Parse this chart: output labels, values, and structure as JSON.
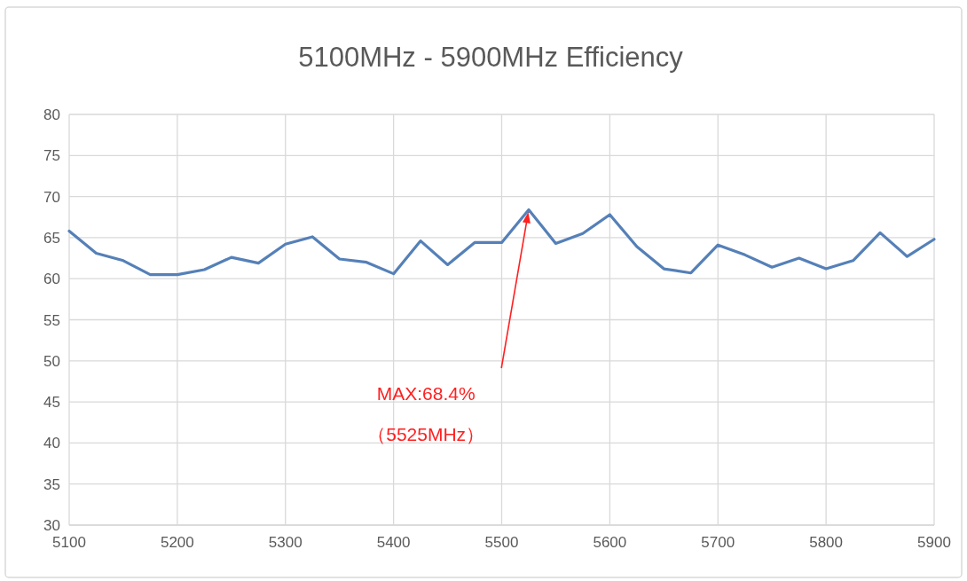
{
  "chart_data": {
    "type": "line",
    "title": "5100MHz - 5900MHz Efficiency",
    "x": [
      5100,
      5125,
      5150,
      5175,
      5200,
      5225,
      5250,
      5275,
      5300,
      5325,
      5350,
      5375,
      5400,
      5425,
      5450,
      5475,
      5500,
      5525,
      5550,
      5575,
      5600,
      5625,
      5650,
      5675,
      5700,
      5725,
      5750,
      5775,
      5800,
      5825,
      5850,
      5875,
      5900
    ],
    "series": [
      {
        "color": "#5580b8",
        "values": [
          65.8,
          63.1,
          62.2,
          60.5,
          60.5,
          61.1,
          62.6,
          61.9,
          64.2,
          65.1,
          62.4,
          62.0,
          60.6,
          64.6,
          61.7,
          64.4,
          64.4,
          68.4,
          64.3,
          65.5,
          67.8,
          63.9,
          61.2,
          60.7,
          64.1,
          62.9,
          61.4,
          62.5,
          61.2,
          62.2,
          65.6,
          62.7,
          64.8
        ]
      }
    ],
    "xlim": [
      5100,
      5900
    ],
    "xticks": [
      5100,
      5200,
      5300,
      5400,
      5500,
      5600,
      5700,
      5800,
      5900
    ],
    "ylim": [
      30,
      80
    ],
    "yticks": [
      30,
      35,
      40,
      45,
      50,
      55,
      60,
      65,
      70,
      75,
      80
    ],
    "grid": true,
    "marker": "none",
    "line_style": "solid",
    "annotations": [
      "MAX:68.4%\n（5525MHz）"
    ]
  }
}
